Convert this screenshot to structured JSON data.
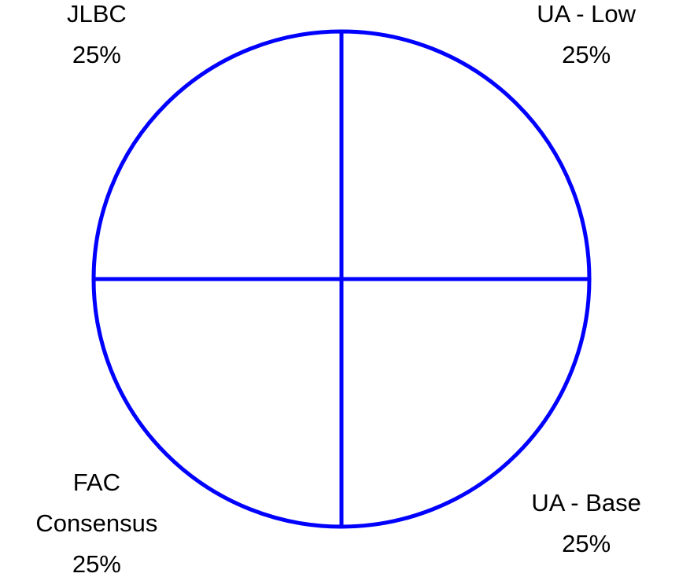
{
  "chart_data": {
    "type": "pie",
    "categories": [
      "UA - Low",
      "UA - Base",
      "FAC Consensus",
      "JLBC"
    ],
    "values": [
      25,
      25,
      25,
      25
    ],
    "value_labels": [
      "25%",
      "25%",
      "25%",
      "25%"
    ],
    "color": "#0000ff"
  }
}
